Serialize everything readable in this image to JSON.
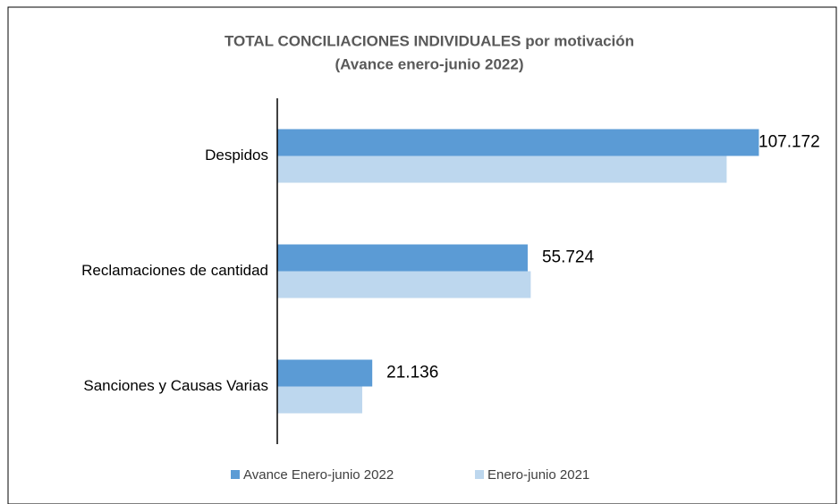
{
  "chart_data": {
    "type": "hbar",
    "title": "TOTAL CONCILIACIONES INDIVIDUALES  por motivación",
    "subtitle": "(Avance enero-junio 2022)",
    "categories": [
      "Despidos",
      "Reclamaciones de cantidad",
      "Sanciones y Causas Varias"
    ],
    "series": [
      {
        "name": "Avance Enero-junio 2022",
        "color": "#5b9bd5",
        "values": [
          107172,
          55724,
          21136
        ],
        "value_labels": [
          "107.172",
          "55.724",
          "21.136"
        ]
      },
      {
        "name": "Enero-junio  2021",
        "color": "#bdd7ee",
        "values": [
          100000,
          56400,
          18900
        ]
      }
    ],
    "xlim": [
      0,
      125000
    ],
    "legend": "bottom"
  }
}
